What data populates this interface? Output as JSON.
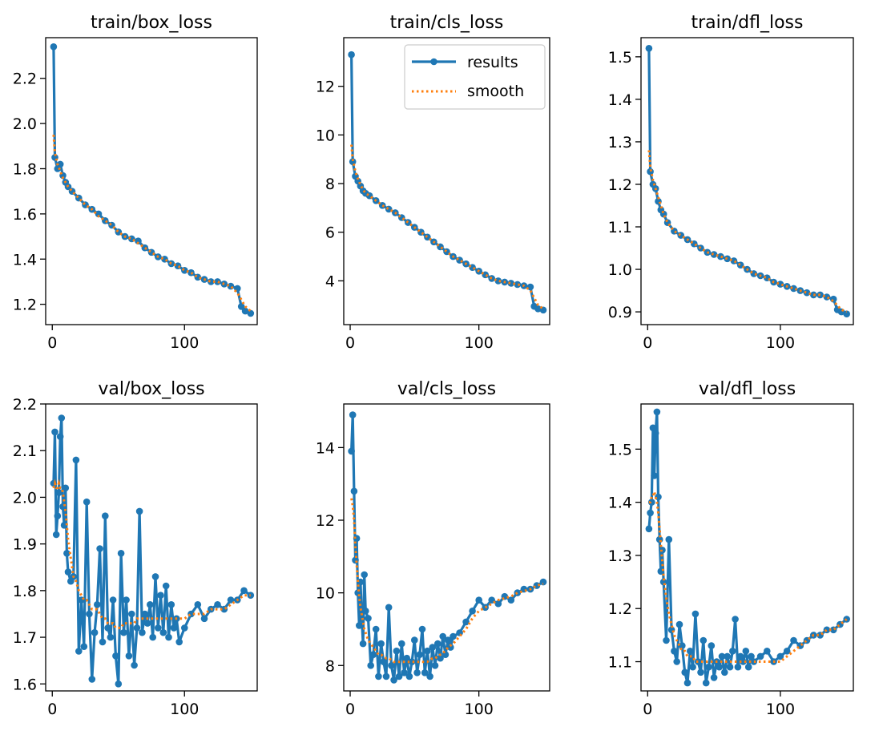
{
  "colors": {
    "results": "#1f77b4",
    "smooth": "#ff7f0e",
    "axes": "#000000",
    "background": "#ffffff"
  },
  "legend": {
    "results_label": "results",
    "smooth_label": "smooth",
    "placement": "upper-right of train/cls_loss"
  },
  "chart_data": [
    {
      "type": "line",
      "title": "train/box_loss",
      "xlim": [
        -5,
        155
      ],
      "ylim": [
        1.11,
        2.38
      ],
      "xticks": [
        0,
        100
      ],
      "xtick_labels": [
        "0",
        "100"
      ],
      "yticks": [
        1.2,
        1.4,
        1.6,
        1.8,
        2.0,
        2.2
      ],
      "ytick_labels": [
        "1.2",
        "1.4",
        "1.6",
        "1.8",
        "2.0",
        "2.2"
      ],
      "x": [
        1,
        2,
        4,
        6,
        8,
        10,
        12,
        15,
        20,
        25,
        30,
        35,
        40,
        45,
        50,
        55,
        60,
        65,
        70,
        75,
        80,
        85,
        90,
        95,
        100,
        105,
        110,
        115,
        120,
        125,
        130,
        135,
        140,
        143,
        146,
        150
      ],
      "series": [
        {
          "name": "results",
          "values": [
            2.34,
            1.85,
            1.8,
            1.82,
            1.77,
            1.74,
            1.72,
            1.7,
            1.67,
            1.64,
            1.62,
            1.6,
            1.57,
            1.55,
            1.52,
            1.5,
            1.49,
            1.48,
            1.45,
            1.43,
            1.41,
            1.4,
            1.38,
            1.37,
            1.35,
            1.34,
            1.32,
            1.31,
            1.3,
            1.3,
            1.29,
            1.28,
            1.27,
            1.19,
            1.17,
            1.16
          ]
        },
        {
          "name": "smooth",
          "values": [
            1.95,
            1.87,
            1.82,
            1.79,
            1.76,
            1.74,
            1.72,
            1.7,
            1.67,
            1.64,
            1.62,
            1.59,
            1.57,
            1.55,
            1.52,
            1.5,
            1.49,
            1.47,
            1.45,
            1.43,
            1.41,
            1.4,
            1.38,
            1.37,
            1.35,
            1.34,
            1.32,
            1.31,
            1.3,
            1.3,
            1.29,
            1.28,
            1.25,
            1.22,
            1.19,
            1.17
          ]
        }
      ]
    },
    {
      "type": "line",
      "title": "train/cls_loss",
      "xlim": [
        -5,
        155
      ],
      "ylim": [
        2.2,
        14.0
      ],
      "xticks": [
        0,
        100
      ],
      "xtick_labels": [
        "0",
        "100"
      ],
      "yticks": [
        4,
        6,
        8,
        10,
        12
      ],
      "ytick_labels": [
        "4",
        "6",
        "8",
        "10",
        "12"
      ],
      "x": [
        1,
        2,
        4,
        6,
        8,
        10,
        12,
        15,
        20,
        25,
        30,
        35,
        40,
        45,
        50,
        55,
        60,
        65,
        70,
        75,
        80,
        85,
        90,
        95,
        100,
        105,
        110,
        115,
        120,
        125,
        130,
        135,
        140,
        143,
        146,
        150
      ],
      "series": [
        {
          "name": "results",
          "values": [
            13.3,
            8.9,
            8.3,
            8.1,
            7.9,
            7.7,
            7.6,
            7.5,
            7.3,
            7.1,
            6.95,
            6.8,
            6.6,
            6.4,
            6.2,
            6.0,
            5.8,
            5.6,
            5.4,
            5.2,
            5.0,
            4.85,
            4.7,
            4.55,
            4.4,
            4.25,
            4.1,
            4.0,
            3.95,
            3.9,
            3.85,
            3.8,
            3.75,
            2.95,
            2.85,
            2.8
          ]
        },
        {
          "name": "smooth",
          "values": [
            9.6,
            9.0,
            8.5,
            8.2,
            7.95,
            7.75,
            7.6,
            7.5,
            7.3,
            7.1,
            6.95,
            6.8,
            6.6,
            6.4,
            6.2,
            6.0,
            5.8,
            5.6,
            5.4,
            5.2,
            5.0,
            4.85,
            4.7,
            4.55,
            4.4,
            4.25,
            4.1,
            4.0,
            3.95,
            3.9,
            3.85,
            3.8,
            3.6,
            3.3,
            3.0,
            2.85
          ]
        }
      ]
    },
    {
      "type": "line",
      "title": "train/dfl_loss",
      "xlim": [
        -5,
        155
      ],
      "ylim": [
        0.87,
        1.545
      ],
      "xticks": [
        0,
        100
      ],
      "xtick_labels": [
        "0",
        "100"
      ],
      "yticks": [
        0.9,
        1.0,
        1.1,
        1.2,
        1.3,
        1.4,
        1.5
      ],
      "ytick_labels": [
        "0.9",
        "1.0",
        "1.1",
        "1.2",
        "1.3",
        "1.4",
        "1.5"
      ],
      "x": [
        1,
        2,
        4,
        6,
        8,
        10,
        12,
        15,
        20,
        25,
        30,
        35,
        40,
        45,
        50,
        55,
        60,
        65,
        70,
        75,
        80,
        85,
        90,
        95,
        100,
        105,
        110,
        115,
        120,
        125,
        130,
        135,
        140,
        143,
        146,
        150
      ],
      "series": [
        {
          "name": "results",
          "values": [
            1.52,
            1.23,
            1.2,
            1.19,
            1.16,
            1.14,
            1.13,
            1.11,
            1.09,
            1.08,
            1.07,
            1.06,
            1.05,
            1.04,
            1.035,
            1.03,
            1.025,
            1.02,
            1.01,
            1.0,
            0.99,
            0.985,
            0.98,
            0.97,
            0.965,
            0.96,
            0.955,
            0.95,
            0.945,
            0.94,
            0.94,
            0.935,
            0.93,
            0.905,
            0.9,
            0.895
          ]
        },
        {
          "name": "smooth",
          "values": [
            1.28,
            1.24,
            1.21,
            1.19,
            1.17,
            1.15,
            1.13,
            1.11,
            1.09,
            1.08,
            1.07,
            1.06,
            1.05,
            1.04,
            1.035,
            1.03,
            1.025,
            1.02,
            1.01,
            1.0,
            0.99,
            0.985,
            0.98,
            0.97,
            0.965,
            0.96,
            0.955,
            0.95,
            0.945,
            0.94,
            0.94,
            0.935,
            0.925,
            0.915,
            0.905,
            0.9
          ]
        }
      ]
    },
    {
      "type": "line",
      "title": "val/box_loss",
      "xlim": [
        -5,
        155
      ],
      "ylim": [
        1.585,
        2.2
      ],
      "xticks": [
        0,
        100
      ],
      "xtick_labels": [
        "0",
        "100"
      ],
      "yticks": [
        1.6,
        1.7,
        1.8,
        1.9,
        2.0,
        2.1,
        2.2
      ],
      "ytick_labels": [
        "1.6",
        "1.7",
        "1.8",
        "1.9",
        "2.0",
        "2.1",
        "2.2"
      ],
      "x": [
        1,
        2,
        3,
        4,
        5,
        6,
        7,
        8,
        9,
        10,
        11,
        12,
        14,
        16,
        18,
        20,
        22,
        24,
        26,
        28,
        30,
        32,
        34,
        36,
        38,
        40,
        42,
        44,
        46,
        48,
        50,
        52,
        54,
        56,
        58,
        60,
        62,
        64,
        66,
        68,
        70,
        72,
        74,
        76,
        78,
        80,
        82,
        84,
        86,
        88,
        90,
        92,
        94,
        96,
        100,
        105,
        110,
        115,
        120,
        125,
        130,
        135,
        140,
        145,
        150
      ],
      "series": [
        {
          "name": "results",
          "values": [
            2.03,
            2.14,
            1.92,
            1.96,
            2.01,
            2.13,
            2.17,
            1.98,
            1.94,
            2.02,
            1.88,
            1.84,
            1.82,
            1.83,
            2.08,
            1.67,
            1.78,
            1.68,
            1.99,
            1.75,
            1.61,
            1.71,
            1.77,
            1.89,
            1.69,
            1.96,
            1.72,
            1.7,
            1.78,
            1.66,
            1.6,
            1.88,
            1.71,
            1.78,
            1.66,
            1.75,
            1.64,
            1.72,
            1.97,
            1.71,
            1.75,
            1.73,
            1.77,
            1.7,
            1.83,
            1.72,
            1.79,
            1.71,
            1.81,
            1.7,
            1.77,
            1.72,
            1.74,
            1.69,
            1.72,
            1.75,
            1.77,
            1.74,
            1.76,
            1.77,
            1.76,
            1.78,
            1.78,
            1.8,
            1.79
          ]
        },
        {
          "name": "smooth",
          "values": [
            2.02,
            2.03,
            2.02,
            2.02,
            2.03,
            2.02,
            2.02,
            2.01,
            1.99,
            1.97,
            1.94,
            1.91,
            1.87,
            1.83,
            1.82,
            1.8,
            1.79,
            1.78,
            1.78,
            1.77,
            1.76,
            1.76,
            1.76,
            1.75,
            1.74,
            1.74,
            1.73,
            1.73,
            1.73,
            1.72,
            1.72,
            1.72,
            1.73,
            1.73,
            1.73,
            1.73,
            1.73,
            1.74,
            1.74,
            1.74,
            1.74,
            1.74,
            1.74,
            1.74,
            1.74,
            1.74,
            1.74,
            1.74,
            1.74,
            1.74,
            1.74,
            1.74,
            1.74,
            1.74,
            1.74,
            1.75,
            1.75,
            1.75,
            1.76,
            1.76,
            1.76,
            1.77,
            1.78,
            1.79,
            1.79
          ]
        }
      ]
    },
    {
      "type": "line",
      "title": "val/cls_loss",
      "xlim": [
        -5,
        155
      ],
      "ylim": [
        7.3,
        15.2
      ],
      "xticks": [
        0,
        100
      ],
      "xtick_labels": [
        "0",
        "100"
      ],
      "yticks": [
        8,
        10,
        12,
        14
      ],
      "ytick_labels": [
        "8",
        "10",
        "12",
        "14"
      ],
      "x": [
        1,
        2,
        3,
        4,
        5,
        6,
        7,
        8,
        9,
        10,
        11,
        12,
        14,
        16,
        18,
        20,
        22,
        24,
        26,
        28,
        30,
        32,
        34,
        36,
        38,
        40,
        42,
        44,
        46,
        48,
        50,
        52,
        54,
        56,
        58,
        60,
        62,
        64,
        66,
        68,
        70,
        72,
        74,
        76,
        78,
        80,
        85,
        90,
        95,
        100,
        105,
        110,
        115,
        120,
        125,
        130,
        135,
        140,
        145,
        150
      ],
      "series": [
        {
          "name": "results",
          "values": [
            13.9,
            14.9,
            12.8,
            10.9,
            11.5,
            10.0,
            9.1,
            10.3,
            9.3,
            8.6,
            10.5,
            9.5,
            9.3,
            8.0,
            8.3,
            9.0,
            7.7,
            8.6,
            8.1,
            7.7,
            9.6,
            8.0,
            7.6,
            8.4,
            7.7,
            8.6,
            7.8,
            8.2,
            7.7,
            8.1,
            8.7,
            7.8,
            8.3,
            9.0,
            7.8,
            8.4,
            7.7,
            8.5,
            8.0,
            8.6,
            8.2,
            8.8,
            8.3,
            8.7,
            8.5,
            8.8,
            8.9,
            9.2,
            9.5,
            9.8,
            9.6,
            9.8,
            9.7,
            9.9,
            9.8,
            10.0,
            10.1,
            10.1,
            10.2,
            10.3
          ]
        },
        {
          "name": "smooth",
          "values": [
            12.6,
            12.4,
            12.0,
            11.3,
            10.8,
            10.3,
            9.9,
            9.6,
            9.4,
            9.2,
            9.0,
            8.9,
            8.7,
            8.6,
            8.5,
            8.4,
            8.3,
            8.3,
            8.25,
            8.2,
            8.2,
            8.15,
            8.1,
            8.1,
            8.1,
            8.1,
            8.1,
            8.1,
            8.1,
            8.1,
            8.1,
            8.1,
            8.1,
            8.1,
            8.1,
            8.1,
            8.15,
            8.2,
            8.2,
            8.25,
            8.3,
            8.35,
            8.4,
            8.5,
            8.55,
            8.6,
            8.8,
            9.0,
            9.3,
            9.5,
            9.6,
            9.7,
            9.8,
            9.85,
            9.9,
            10.0,
            10.05,
            10.1,
            10.2,
            10.25
          ]
        }
      ]
    },
    {
      "type": "line",
      "title": "val/dfl_loss",
      "xlim": [
        -5,
        155
      ],
      "ylim": [
        1.045,
        1.585
      ],
      "xticks": [
        0,
        100
      ],
      "xtick_labels": [
        "0",
        "100"
      ],
      "yticks": [
        1.1,
        1.2,
        1.3,
        1.4,
        1.5
      ],
      "ytick_labels": [
        "1.1",
        "1.2",
        "1.3",
        "1.4",
        "1.5"
      ],
      "x": [
        1,
        2,
        3,
        4,
        5,
        6,
        7,
        8,
        9,
        10,
        11,
        12,
        14,
        16,
        18,
        20,
        22,
        24,
        26,
        28,
        30,
        32,
        34,
        36,
        38,
        40,
        42,
        44,
        46,
        48,
        50,
        52,
        54,
        56,
        58,
        60,
        62,
        64,
        66,
        68,
        70,
        72,
        74,
        76,
        78,
        80,
        85,
        90,
        95,
        100,
        105,
        110,
        115,
        120,
        125,
        130,
        135,
        140,
        145,
        150
      ],
      "series": [
        {
          "name": "results",
          "values": [
            1.35,
            1.38,
            1.4,
            1.54,
            1.45,
            1.53,
            1.57,
            1.41,
            1.33,
            1.27,
            1.31,
            1.25,
            1.14,
            1.33,
            1.16,
            1.12,
            1.1,
            1.17,
            1.13,
            1.08,
            1.06,
            1.12,
            1.09,
            1.19,
            1.1,
            1.08,
            1.14,
            1.06,
            1.09,
            1.13,
            1.07,
            1.1,
            1.09,
            1.11,
            1.08,
            1.11,
            1.09,
            1.12,
            1.18,
            1.09,
            1.11,
            1.1,
            1.12,
            1.09,
            1.11,
            1.1,
            1.11,
            1.12,
            1.1,
            1.11,
            1.12,
            1.14,
            1.13,
            1.14,
            1.15,
            1.15,
            1.16,
            1.16,
            1.17,
            1.18
          ]
        },
        {
          "name": "smooth",
          "values": [
            1.4,
            1.4,
            1.41,
            1.41,
            1.42,
            1.41,
            1.4,
            1.38,
            1.35,
            1.32,
            1.29,
            1.26,
            1.22,
            1.19,
            1.17,
            1.15,
            1.14,
            1.13,
            1.12,
            1.12,
            1.11,
            1.11,
            1.11,
            1.1,
            1.1,
            1.1,
            1.1,
            1.1,
            1.1,
            1.1,
            1.1,
            1.1,
            1.1,
            1.1,
            1.1,
            1.1,
            1.1,
            1.1,
            1.1,
            1.1,
            1.1,
            1.1,
            1.1,
            1.1,
            1.1,
            1.1,
            1.1,
            1.1,
            1.1,
            1.1,
            1.11,
            1.12,
            1.13,
            1.14,
            1.15,
            1.15,
            1.16,
            1.16,
            1.17,
            1.18
          ]
        }
      ]
    }
  ]
}
